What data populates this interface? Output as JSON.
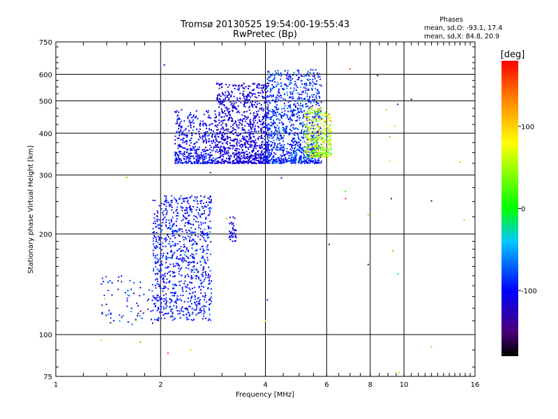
{
  "header": {
    "title_line1": "Tromsø 20130525 19:54:00-19:55:43",
    "title_line2": "RwPretec (Bp)"
  },
  "stats": {
    "heading": "Phases",
    "line_o": "mean, sd,O: -93.1, 17.4",
    "line_x": "mean, sd,X: 84.8, 20.9"
  },
  "colorbar": {
    "unit_label": "[deg]",
    "tick_labels": [
      "100",
      "0",
      "-100"
    ],
    "tick_values": [
      100,
      0,
      -100
    ],
    "range": [
      -180,
      180
    ],
    "colors": [
      "#000000",
      "#4b007a",
      "#0000ff",
      "#00c8ff",
      "#00ff00",
      "#ffff00",
      "#ff7f00",
      "#ff0000"
    ]
  },
  "chart_data": {
    "type": "scatter",
    "title": "Tromsø 20130525 19:54:00-19:55:43",
    "subtitle": "RwPretec (Bp)",
    "xlabel": "Frequency [MHz]",
    "ylabel": "Stationary phase Virtual Height [km]",
    "x_scale": "log",
    "y_scale": "log",
    "xlim": [
      1,
      16
    ],
    "ylim": [
      75,
      750
    ],
    "x_ticks": [
      1,
      2,
      4,
      6,
      8,
      10,
      16
    ],
    "x_tick_labels": [
      "1",
      "2",
      "4",
      "6",
      "8",
      "10",
      "16"
    ],
    "y_ticks": [
      75,
      100,
      200,
      300,
      400,
      500,
      600,
      750
    ],
    "y_tick_labels": [
      "75",
      "100",
      "200",
      "300",
      "400",
      "500",
      "600",
      "750"
    ],
    "grid": true,
    "color_scale": "phase (deg), -180 to 180",
    "clusters": [
      {
        "name": "",
        "x_range": [
          1.9,
          2.8
        ],
        "y_range": [
          110,
          260
        ],
        "points": 900,
        "phase_mean": -95,
        "phase_spread": 18
      },
      {
        "name": "",
        "x_range": [
          2.2,
          2.9
        ],
        "y_range": [
          325,
          470
        ],
        "points": 450,
        "phase_mean": -100,
        "phase_spread": 20
      },
      {
        "name": "",
        "x_range": [
          2.9,
          4.1
        ],
        "y_range": [
          325,
          565
        ],
        "points": 1000,
        "phase_mean": -112,
        "phase_spread": 14
      },
      {
        "name": "",
        "x_range": [
          4.0,
          5.8
        ],
        "y_range": [
          325,
          620
        ],
        "points": 1100,
        "phase_mean": -88,
        "phase_spread": 25
      },
      {
        "name": "",
        "x_range": [
          5.2,
          6.2
        ],
        "y_range": [
          340,
          480
        ],
        "points": 350,
        "phase_mean": 55,
        "phase_spread": 45
      },
      {
        "name": "",
        "x_range": [
          1.35,
          1.9
        ],
        "y_range": [
          106,
          150
        ],
        "points": 70,
        "phase_mean": -100,
        "phase_spread": 30
      },
      {
        "name": "",
        "x_range": [
          3.15,
          3.3
        ],
        "y_range": [
          190,
          225
        ],
        "points": 35,
        "phase_mean": -110,
        "phase_spread": 10
      }
    ],
    "scattered_points": [
      {
        "x": 2.05,
        "y": 640,
        "phase": -110
      },
      {
        "x": 2.78,
        "y": 305,
        "phase": -140
      },
      {
        "x": 1.6,
        "y": 295,
        "phase": 120
      },
      {
        "x": 1.38,
        "y": 128,
        "phase": 110
      },
      {
        "x": 1.38,
        "y": 122,
        "phase": 80
      },
      {
        "x": 1.35,
        "y": 96,
        "phase": 30
      },
      {
        "x": 1.7,
        "y": 110,
        "phase": 40
      },
      {
        "x": 1.75,
        "y": 95,
        "phase": 130
      },
      {
        "x": 2.1,
        "y": 88,
        "phase": 160
      },
      {
        "x": 2.45,
        "y": 90,
        "phase": 100
      },
      {
        "x": 3.1,
        "y": 222,
        "phase": 120
      },
      {
        "x": 4.0,
        "y": 110,
        "phase": 80
      },
      {
        "x": 4.05,
        "y": 127,
        "phase": -110
      },
      {
        "x": 4.45,
        "y": 294,
        "phase": -110
      },
      {
        "x": 6.1,
        "y": 186,
        "phase": -130
      },
      {
        "x": 6.8,
        "y": 268,
        "phase": 10
      },
      {
        "x": 6.8,
        "y": 255,
        "phase": 170
      },
      {
        "x": 7.0,
        "y": 622,
        "phase": 150
      },
      {
        "x": 7.9,
        "y": 162,
        "phase": -140
      },
      {
        "x": 7.9,
        "y": 228,
        "phase": 110
      },
      {
        "x": 8.4,
        "y": 595,
        "phase": -160
      },
      {
        "x": 8.9,
        "y": 470,
        "phase": 110
      },
      {
        "x": 9.1,
        "y": 390,
        "phase": 120
      },
      {
        "x": 9.2,
        "y": 255,
        "phase": -140
      },
      {
        "x": 9.3,
        "y": 178,
        "phase": 130
      },
      {
        "x": 9.1,
        "y": 330,
        "phase": 100
      },
      {
        "x": 9.4,
        "y": 420,
        "phase": 110
      },
      {
        "x": 9.6,
        "y": 488,
        "phase": -120
      },
      {
        "x": 9.6,
        "y": 152,
        "phase": -10
      },
      {
        "x": 9.7,
        "y": 77,
        "phase": 100
      },
      {
        "x": 10.5,
        "y": 505,
        "phase": -160
      },
      {
        "x": 12.0,
        "y": 251,
        "phase": -150
      },
      {
        "x": 12.0,
        "y": 92,
        "phase": 120
      },
      {
        "x": 14.5,
        "y": 328,
        "phase": 30
      },
      {
        "x": 14.9,
        "y": 220,
        "phase": 110
      }
    ]
  }
}
